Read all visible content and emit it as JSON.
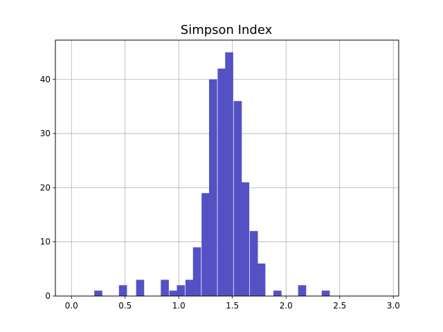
{
  "chart_data": {
    "type": "bar",
    "title": "Simpson Index",
    "xlabel": "",
    "ylabel": "",
    "x_ticks": [
      "0.0",
      "0.5",
      "1.0",
      "1.5",
      "2.0",
      "2.5",
      "3.0"
    ],
    "y_ticks": [
      "0",
      "10",
      "20",
      "30",
      "40"
    ],
    "xlim": [
      -0.15,
      3.05
    ],
    "ylim": [
      0,
      47.25
    ],
    "grid": true,
    "bar_color": "#5451c4",
    "bin_width": 0.075,
    "bins": [
      {
        "x": 0.25,
        "value": 1
      },
      {
        "x": 0.48,
        "value": 2
      },
      {
        "x": 0.64,
        "value": 3
      },
      {
        "x": 0.87,
        "value": 3
      },
      {
        "x": 0.95,
        "value": 1
      },
      {
        "x": 1.02,
        "value": 2
      },
      {
        "x": 1.1,
        "value": 3
      },
      {
        "x": 1.17,
        "value": 9
      },
      {
        "x": 1.25,
        "value": 19
      },
      {
        "x": 1.32,
        "value": 40
      },
      {
        "x": 1.4,
        "value": 42
      },
      {
        "x": 1.47,
        "value": 45
      },
      {
        "x": 1.55,
        "value": 36
      },
      {
        "x": 1.62,
        "value": 21
      },
      {
        "x": 1.7,
        "value": 12
      },
      {
        "x": 1.77,
        "value": 6
      },
      {
        "x": 1.92,
        "value": 1
      },
      {
        "x": 2.15,
        "value": 2
      },
      {
        "x": 2.37,
        "value": 1
      }
    ]
  }
}
